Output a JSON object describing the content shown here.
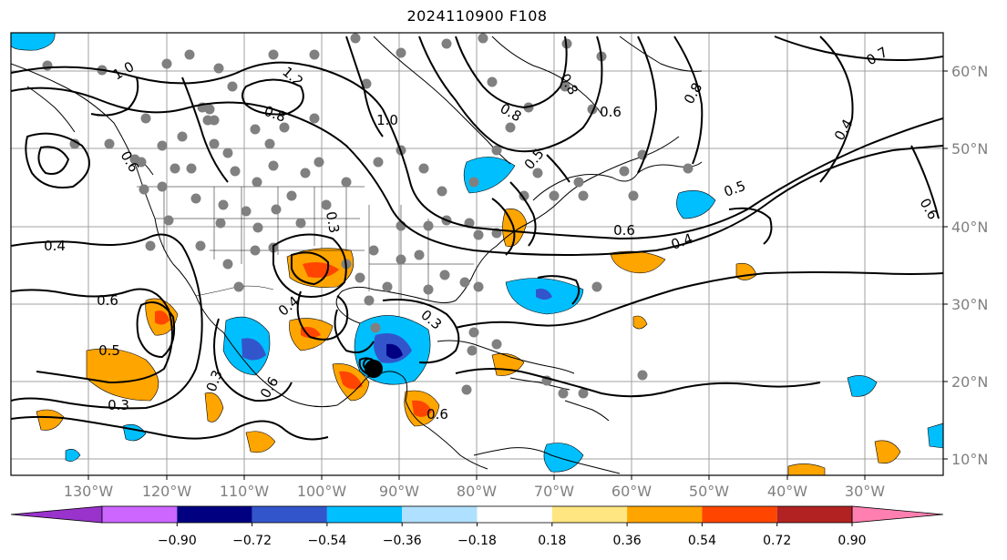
{
  "title": "2024110900 F108",
  "map": {
    "lon_labels": [
      "130°W",
      "120°W",
      "110°W",
      "100°W",
      "90°W",
      "80°W",
      "70°W",
      "60°W",
      "50°W",
      "40°W",
      "30°W"
    ],
    "lat_labels": [
      "60°N",
      "50°N",
      "40°N",
      "30°N",
      "20°N",
      "10°N"
    ],
    "contour_labels": [
      "1.0",
      "1.2",
      "0.8",
      "1.0",
      "0.6",
      "0.4",
      "0.6",
      "0.5",
      "0.3",
      "0.4",
      "0.3",
      "0.6",
      "0.8",
      "0.5",
      "0.6",
      "0.4",
      "0.7",
      "0.8",
      "0.6",
      "0.5",
      "0.4",
      "0.6",
      "0.8",
      "0.3",
      "0.6",
      "0.3"
    ],
    "colors": {
      "land": "#000000",
      "contour": "#000000",
      "station": "#808080",
      "grid": "#a0a0a0"
    }
  },
  "colorbar": {
    "ticks": [
      "−0.90",
      "−0.72",
      "−0.54",
      "−0.36",
      "−0.18",
      "0.18",
      "0.36",
      "0.54",
      "0.72",
      "0.90"
    ],
    "bins": [
      {
        "color": "#9933cc"
      },
      {
        "color": "#cc66ff"
      },
      {
        "color": "#000080"
      },
      {
        "color": "#3355cc"
      },
      {
        "color": "#00bfff"
      },
      {
        "color": "#b0e0ff"
      },
      {
        "color": "#ffffff"
      },
      {
        "color": "#ffe680"
      },
      {
        "color": "#ffa500"
      },
      {
        "color": "#ff4500"
      },
      {
        "color": "#b22222"
      },
      {
        "color": "#ff80b0"
      }
    ]
  }
}
